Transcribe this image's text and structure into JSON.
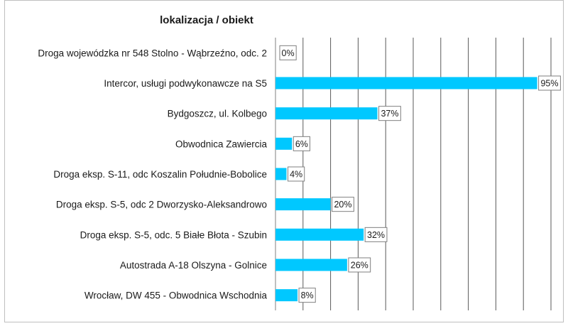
{
  "chart_data": {
    "type": "bar",
    "orientation": "horizontal",
    "title": "lokalizacja / obiekt",
    "categories": [
      "Droga wojewódzka nr 548 Stolno - Wąbrzeźno, odc. 2",
      "Intercor, usługi podwykonawcze na S5",
      "Bydgoszcz, ul. Kolbego",
      "Obwodnica Zawiercia",
      "Droga eksp. S-11, odc Koszalin Południe-Bobolice",
      "Droga eksp. S-5, odc 2 Dworzysko-Aleksandrowo",
      "Droga eksp. S-5, odc. 5 Białe Błota - Szubin",
      "Autostrada A-18 Olszyna - Golnice",
      "Wrocław, DW 455 - Obwodnica Wschodnia"
    ],
    "values": [
      0,
      95,
      37,
      6,
      4,
      20,
      32,
      26,
      8
    ],
    "data_labels": [
      "0%",
      "95%",
      "37%",
      "6%",
      "4%",
      "20%",
      "32%",
      "26%",
      "8%"
    ],
    "xlim": [
      0,
      100
    ],
    "grid": true,
    "bar_color": "#00c8ff"
  }
}
